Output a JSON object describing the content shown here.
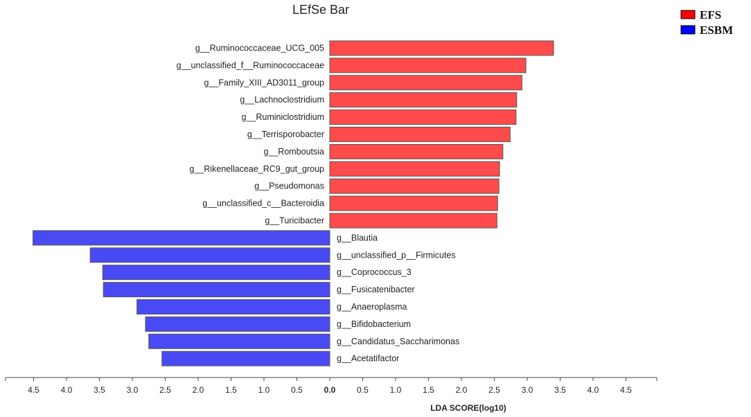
{
  "chart_data": {
    "type": "bar",
    "orientation": "horizontal",
    "title": "LEfSe Bar",
    "xlabel": "LDA SCORE(log10)",
    "ylabel": "",
    "xlim": [
      -5.0,
      5.0
    ],
    "ticks": [
      "4.5",
      "4.0",
      "3.5",
      "3.0",
      "2.5",
      "2.0",
      "1.5",
      "1.0",
      "0.5",
      "0.0",
      "0.5",
      "1.0",
      "1.5",
      "2.0",
      "2.5",
      "3.0",
      "3.5",
      "4.0",
      "4.5"
    ],
    "legend": {
      "placement": "top-right",
      "items": [
        "EFS",
        "ESBM"
      ]
    },
    "colors": {
      "EFS": "#ff4b4b",
      "ESBM": "#4a4af4",
      "legend_EFS": "#ff0000",
      "legend_ESBM": "#0000ff"
    },
    "series": [
      {
        "name": "EFS",
        "categories": [
          "g__Ruminococcaceae_UCG_005",
          "g__unclassified_f__Ruminococcaceae",
          "g__Family_XIII_AD3011_group",
          "g__Lachnoclostridium",
          "g__Ruminiclostridium",
          "g__Terrisporobacter",
          "g__Romboutsia",
          "g__Rikenellaceae_RC9_gut_group",
          "g__Pseudomonas",
          "g__unclassified_c__Bacteroidia",
          "g__Turicibacter"
        ],
        "values": [
          3.4,
          2.98,
          2.92,
          2.84,
          2.83,
          2.74,
          2.63,
          2.58,
          2.57,
          2.55,
          2.54
        ]
      },
      {
        "name": "ESBM",
        "categories": [
          "g__Blautia",
          "g__unclassified_p__Firmicutes",
          "g__Coprococcus_3",
          "g__Fusicatenibacter",
          "g__Anaeroplasma",
          "g__Bifidobacterium",
          "g__Candidatus_Saccharimonas",
          "g__Acetatifactor"
        ],
        "values": [
          4.51,
          3.64,
          3.45,
          3.44,
          2.93,
          2.8,
          2.75,
          2.55
        ]
      }
    ]
  }
}
